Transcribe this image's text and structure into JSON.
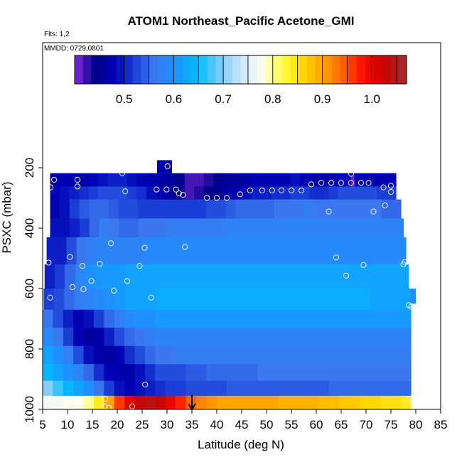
{
  "chart_data": {
    "type": "heatmap",
    "title": "ATOM1 Northeast_Pacific Acetone_GMI",
    "annotations": [
      "Flts: 1,2",
      "MMDD: 0729,0801"
    ],
    "xlabel": "Latitude (deg N)",
    "ylabel": "PSXC (mbar)",
    "xlim": [
      5,
      85
    ],
    "ylim": [
      1000,
      80
    ],
    "x_ticks": [
      5,
      10,
      15,
      20,
      25,
      30,
      35,
      40,
      45,
      50,
      55,
      60,
      65,
      70,
      75,
      80,
      85
    ],
    "y_ticks": [
      200,
      400,
      600,
      800,
      1000
    ],
    "colorbar": {
      "range": [
        0.4,
        1.07
      ],
      "ticks": [
        "0.5",
        "0.6",
        "0.7",
        "0.8",
        "0.9",
        "1.0"
      ],
      "tick_values": [
        0.5,
        0.6,
        0.7,
        0.8,
        0.9,
        1.0
      ],
      "stops": [
        {
          "v": 0.4,
          "c": "#8a2be2"
        },
        {
          "v": 0.44,
          "c": "#00008b"
        },
        {
          "v": 0.48,
          "c": "#0000b4"
        },
        {
          "v": 0.52,
          "c": "#1a3fd6"
        },
        {
          "v": 0.56,
          "c": "#3b78f0"
        },
        {
          "v": 0.6,
          "c": "#1e90ff"
        },
        {
          "v": 0.65,
          "c": "#00bfff"
        },
        {
          "v": 0.7,
          "c": "#87cefa"
        },
        {
          "v": 0.75,
          "c": "#e0f0ff"
        },
        {
          "v": 0.78,
          "c": "#ffffee"
        },
        {
          "v": 0.82,
          "c": "#ffff40"
        },
        {
          "v": 0.86,
          "c": "#ffd700"
        },
        {
          "v": 0.9,
          "c": "#ffa500"
        },
        {
          "v": 0.94,
          "c": "#ff6600"
        },
        {
          "v": 0.98,
          "c": "#ff1000"
        },
        {
          "v": 1.02,
          "c": "#cc0000"
        },
        {
          "v": 1.07,
          "c": "#a52a2a"
        }
      ]
    },
    "layers": [
      {
        "p_top": 218,
        "p_bot": 262,
        "lat_start": 6.5,
        "lat_end": 76,
        "values": [
          0.47,
          0.48,
          0.47,
          0.47,
          0.48,
          0.49,
          0.5,
          0.5,
          0.49,
          0.48,
          0.47,
          0.47,
          0.46,
          0.44,
          0.42,
          0.42,
          0.43,
          0.44,
          0.45,
          0.46,
          0.47,
          0.48,
          0.48,
          0.48,
          0.48,
          0.49,
          0.48,
          0.47,
          0.47,
          0.47,
          0.48,
          0.48,
          0.48,
          0.47,
          0.48,
          0.48
        ]
      },
      {
        "p_top": 262,
        "p_bot": 305,
        "lat_start": 6.5,
        "lat_end": 76,
        "values": [
          0.48,
          0.49,
          0.5,
          0.51,
          0.52,
          0.53,
          0.53,
          0.53,
          0.52,
          0.51,
          0.49,
          0.48,
          0.46,
          0.44,
          0.42,
          0.43,
          0.44,
          0.45,
          0.47,
          0.48,
          0.49,
          0.5,
          0.5,
          0.51,
          0.51,
          0.52,
          0.52,
          0.51,
          0.51,
          0.52,
          0.53,
          0.53,
          0.53,
          0.53,
          0.52,
          0.52
        ]
      },
      {
        "p_top": 305,
        "p_bot": 368,
        "lat_start": 6.5,
        "lat_end": 77,
        "values": [
          0.48,
          0.49,
          0.52,
          0.54,
          0.55,
          0.55,
          0.54,
          0.53,
          0.53,
          0.52,
          0.52,
          0.52,
          0.52,
          0.52,
          0.52,
          0.52,
          0.53,
          0.53,
          0.54,
          0.55,
          0.55,
          0.55,
          0.55,
          0.56,
          0.56,
          0.56,
          0.57,
          0.56,
          0.56,
          0.56,
          0.56,
          0.56,
          0.56,
          0.56,
          0.55,
          0.55
        ]
      },
      {
        "p_top": 368,
        "p_bot": 430,
        "lat_start": 6.5,
        "lat_end": 77.5,
        "values": [
          0.49,
          0.49,
          0.5,
          0.52,
          0.55,
          0.57,
          0.56,
          0.55,
          0.55,
          0.56,
          0.56,
          0.56,
          0.57,
          0.57,
          0.57,
          0.57,
          0.57,
          0.57,
          0.58,
          0.58,
          0.58,
          0.58,
          0.58,
          0.58,
          0.58,
          0.58,
          0.58,
          0.58,
          0.58,
          0.58,
          0.58,
          0.58,
          0.58,
          0.58,
          0.58,
          0.58
        ]
      },
      {
        "p_top": 430,
        "p_bot": 520,
        "lat_start": 5.8,
        "lat_end": 78,
        "values": [
          0.5,
          0.5,
          0.53,
          0.56,
          0.57,
          0.58,
          0.58,
          0.58,
          0.58,
          0.58,
          0.59,
          0.59,
          0.59,
          0.59,
          0.59,
          0.59,
          0.59,
          0.59,
          0.59,
          0.59,
          0.59,
          0.59,
          0.59,
          0.59,
          0.59,
          0.59,
          0.59,
          0.59,
          0.59,
          0.59,
          0.59,
          0.59,
          0.59,
          0.59,
          0.59,
          0.59
        ]
      },
      {
        "p_top": 520,
        "p_bot": 600,
        "lat_start": 5.4,
        "lat_end": 78.5,
        "values": [
          0.5,
          0.52,
          0.55,
          0.58,
          0.6,
          0.61,
          0.61,
          0.61,
          0.62,
          0.62,
          0.62,
          0.62,
          0.62,
          0.62,
          0.62,
          0.62,
          0.62,
          0.62,
          0.62,
          0.62,
          0.62,
          0.62,
          0.62,
          0.62,
          0.62,
          0.62,
          0.62,
          0.62,
          0.62,
          0.62,
          0.62,
          0.62,
          0.62,
          0.62,
          0.62,
          0.62
        ]
      },
      {
        "p_top": 600,
        "p_bot": 670,
        "lat_start": 5.2,
        "lat_end": 79,
        "values": [
          0.52,
          0.53,
          0.55,
          0.57,
          0.58,
          0.59,
          0.6,
          0.61,
          0.62,
          0.62,
          0.62,
          0.63,
          0.63,
          0.63,
          0.63,
          0.63,
          0.63,
          0.63,
          0.63,
          0.63,
          0.63,
          0.63,
          0.63,
          0.63,
          0.63,
          0.63,
          0.63,
          0.63,
          0.63,
          0.63,
          0.63,
          0.63,
          0.62,
          0.62,
          0.62,
          0.62
        ]
      },
      {
        "p_top": 670,
        "p_bot": 730,
        "lat_start": 5.0,
        "lat_end": 79,
        "values": [
          0.56,
          0.53,
          0.5,
          0.48,
          0.49,
          0.52,
          0.55,
          0.57,
          0.59,
          0.6,
          0.6,
          0.61,
          0.61,
          0.61,
          0.61,
          0.61,
          0.61,
          0.61,
          0.61,
          0.61,
          0.61,
          0.61,
          0.61,
          0.61,
          0.61,
          0.61,
          0.61,
          0.61,
          0.61,
          0.61,
          0.61,
          0.61,
          0.61,
          0.61,
          0.61,
          0.61
        ]
      },
      {
        "p_top": 730,
        "p_bot": 790,
        "lat_start": 5.0,
        "lat_end": 79,
        "values": [
          0.59,
          0.56,
          0.52,
          0.48,
          0.46,
          0.47,
          0.5,
          0.53,
          0.55,
          0.56,
          0.57,
          0.58,
          0.58,
          0.58,
          0.58,
          0.58,
          0.58,
          0.58,
          0.58,
          0.58,
          0.58,
          0.58,
          0.58,
          0.58,
          0.58,
          0.58,
          0.58,
          0.58,
          0.58,
          0.58,
          0.58,
          0.58,
          0.58,
          0.58,
          0.58,
          0.58
        ]
      },
      {
        "p_top": 790,
        "p_bot": 850,
        "lat_start": 5.0,
        "lat_end": 79,
        "values": [
          0.62,
          0.6,
          0.57,
          0.53,
          0.49,
          0.47,
          0.46,
          0.48,
          0.51,
          0.53,
          0.55,
          0.56,
          0.56,
          0.57,
          0.57,
          0.57,
          0.57,
          0.57,
          0.57,
          0.57,
          0.57,
          0.57,
          0.57,
          0.57,
          0.57,
          0.57,
          0.57,
          0.57,
          0.57,
          0.57,
          0.57,
          0.57,
          0.57,
          0.57,
          0.57,
          0.57
        ]
      },
      {
        "p_top": 850,
        "p_bot": 905,
        "lat_start": 5.0,
        "lat_end": 79,
        "values": [
          0.64,
          0.62,
          0.6,
          0.58,
          0.55,
          0.51,
          0.48,
          0.47,
          0.47,
          0.49,
          0.51,
          0.53,
          0.53,
          0.53,
          0.54,
          0.54,
          0.55,
          0.55,
          0.55,
          0.55,
          0.55,
          0.56,
          0.56,
          0.56,
          0.56,
          0.56,
          0.56,
          0.56,
          0.56,
          0.56,
          0.56,
          0.56,
          0.56,
          0.56,
          0.56,
          0.56
        ]
      },
      {
        "p_top": 905,
        "p_bot": 955,
        "lat_start": 5.0,
        "lat_end": 79,
        "values": [
          0.7,
          0.67,
          0.64,
          0.62,
          0.6,
          0.56,
          0.52,
          0.49,
          0.48,
          0.49,
          0.5,
          0.51,
          0.52,
          0.52,
          0.53,
          0.53,
          0.53,
          0.53,
          0.54,
          0.54,
          0.54,
          0.54,
          0.54,
          0.54,
          0.54,
          0.54,
          0.54,
          0.54,
          0.55,
          0.55,
          0.55,
          0.55,
          0.55,
          0.55,
          0.55,
          0.55
        ]
      },
      {
        "p_top": 955,
        "p_bot": 1000,
        "lat_start": 5.0,
        "lat_end": 79,
        "values": [
          0.77,
          0.77,
          0.78,
          0.78,
          0.8,
          0.84,
          0.9,
          0.96,
          1.0,
          1.03,
          1.04,
          1.03,
          1.0,
          0.97,
          0.94,
          0.92,
          0.91,
          0.9,
          0.9,
          0.9,
          0.9,
          0.9,
          0.9,
          0.89,
          0.89,
          0.89,
          0.89,
          0.88,
          0.88,
          0.87,
          0.87,
          0.86,
          0.86,
          0.85,
          0.85,
          0.84
        ]
      }
    ],
    "extra_cells": [
      {
        "lat": [
          28,
          31
        ],
        "p": [
          175,
          218
        ],
        "value": 0.47
      },
      {
        "lat": [
          67,
          67.7
        ],
        "p": [
          225,
          262
        ],
        "value": 0.41
      },
      {
        "lat": [
          78.8,
          80
        ],
        "p": [
          600,
          650
        ],
        "value": 0.6
      }
    ],
    "points": [
      [
        7.3,
        240
      ],
      [
        6.6,
        265
      ],
      [
        12,
        240
      ],
      [
        12,
        262
      ],
      [
        21,
        218
      ],
      [
        21.6,
        278
      ],
      [
        27.3,
        195
      ],
      [
        27.9,
        272
      ],
      [
        29.9,
        272
      ],
      [
        31.8,
        272
      ],
      [
        30.1,
        195
      ],
      [
        32.4,
        285
      ],
      [
        33.2,
        290
      ],
      [
        38,
        300
      ],
      [
        40,
        300
      ],
      [
        42,
        300
      ],
      [
        44.7,
        288
      ],
      [
        46.7,
        275
      ],
      [
        49.1,
        275
      ],
      [
        51.1,
        275
      ],
      [
        53,
        275
      ],
      [
        55,
        275
      ],
      [
        57,
        275
      ],
      [
        59,
        255
      ],
      [
        61,
        250
      ],
      [
        63,
        250
      ],
      [
        65,
        250
      ],
      [
        67,
        220
      ],
      [
        67,
        250
      ],
      [
        69,
        250
      ],
      [
        70.5,
        250
      ],
      [
        73.5,
        265
      ],
      [
        75,
        260
      ],
      [
        75,
        280
      ],
      [
        62.5,
        345
      ],
      [
        71.5,
        345
      ],
      [
        73.8,
        325
      ],
      [
        10.5,
        495
      ],
      [
        18.7,
        450
      ],
      [
        25.5,
        465
      ],
      [
        33.6,
        462
      ],
      [
        64,
        497
      ],
      [
        69.5,
        522
      ],
      [
        77.8,
        512
      ],
      [
        77.5,
        520
      ],
      [
        66,
        557
      ],
      [
        6.2,
        514
      ],
      [
        6.5,
        630
      ],
      [
        11,
        595
      ],
      [
        13,
        525
      ],
      [
        13.2,
        602
      ],
      [
        14.8,
        575
      ],
      [
        16.5,
        518
      ],
      [
        19.3,
        607
      ],
      [
        22,
        575
      ],
      [
        24.5,
        525
      ],
      [
        26.8,
        630
      ],
      [
        78.6,
        655
      ],
      [
        79.1,
        660
      ],
      [
        25.6,
        918
      ],
      [
        17.6,
        965
      ],
      [
        17.5,
        990
      ],
      [
        18.3,
        995
      ],
      [
        23,
        990
      ],
      [
        11,
        992
      ],
      [
        6,
        997
      ],
      [
        78.6,
        965
      ]
    ],
    "arrow_lat": 35
  }
}
